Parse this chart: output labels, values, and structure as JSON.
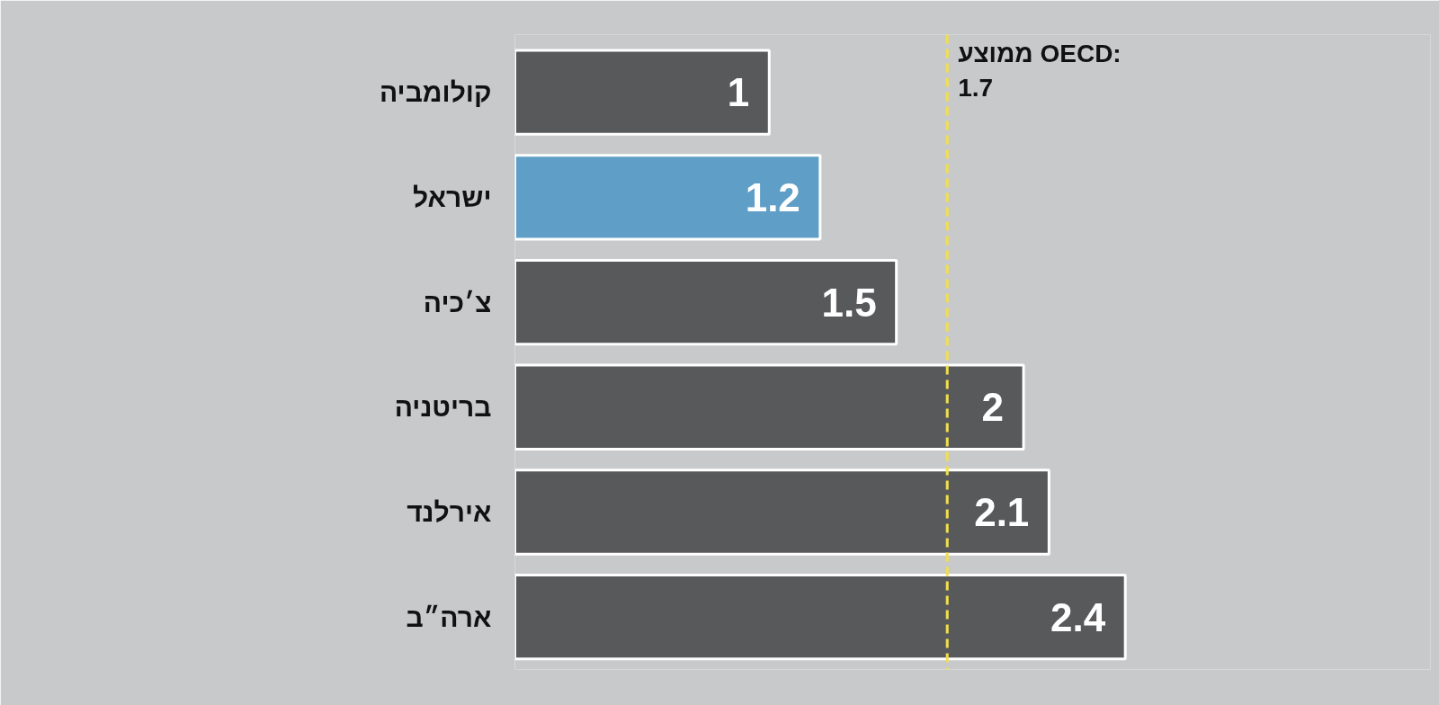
{
  "chart_data": {
    "type": "bar",
    "orientation": "horizontal",
    "categories": [
      "קולומביה",
      "ישראל",
      "צ׳כיה",
      "בריטניה",
      "אירלנד",
      "ארה״ב"
    ],
    "values": [
      1,
      1.2,
      1.5,
      2,
      2.1,
      2.4
    ],
    "colors": [
      "#58595b",
      "#5f9ec6",
      "#58595b",
      "#58595b",
      "#58595b",
      "#58595b"
    ],
    "data_labels": true,
    "ref_lines": [
      {
        "axis": "x",
        "value": 1.7,
        "label": "ממוצע OECD:\n1.7",
        "color": "#f2e04b",
        "line_style": "dashed"
      }
    ],
    "grid": false,
    "tick_labels": "y"
  }
}
